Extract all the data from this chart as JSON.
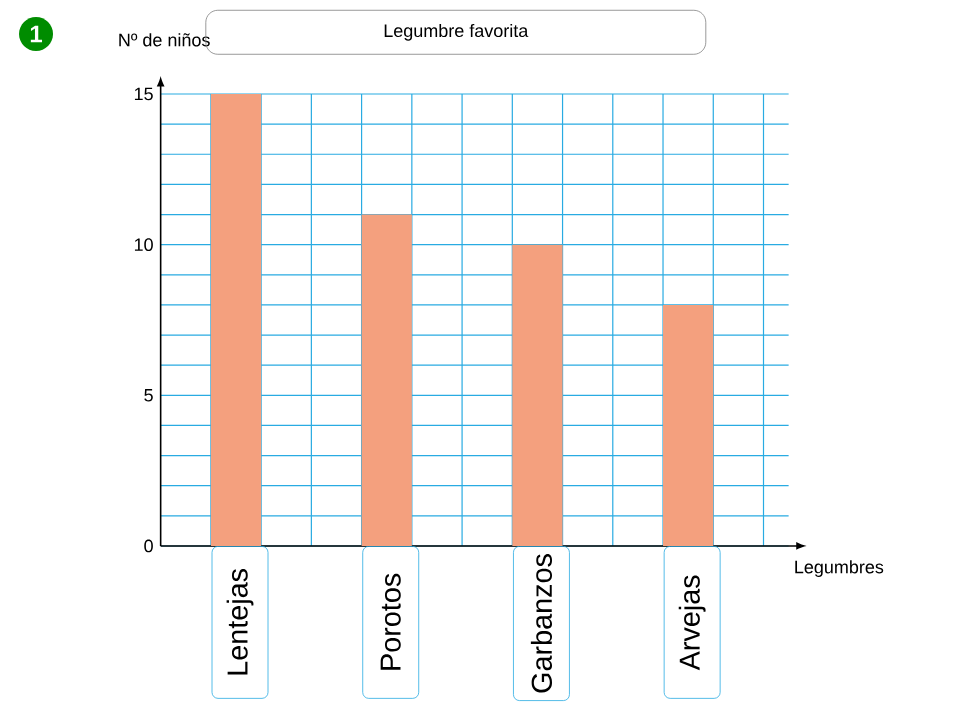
{
  "chart_data": {
    "type": "bar",
    "title": "Legumbre favorita",
    "xlabel": "Legumbres",
    "ylabel": "Nº de niños",
    "annotations": [
      "1"
    ],
    "categories": [
      "Lentejas",
      "Porotos",
      "Garbanzos",
      "Arvejas"
    ],
    "values": [
      15,
      11,
      10,
      8
    ],
    "color": "#f4a07e",
    "ylim": [
      0,
      15
    ],
    "yticks": [
      0,
      5,
      10,
      15
    ],
    "grid": true
  }
}
